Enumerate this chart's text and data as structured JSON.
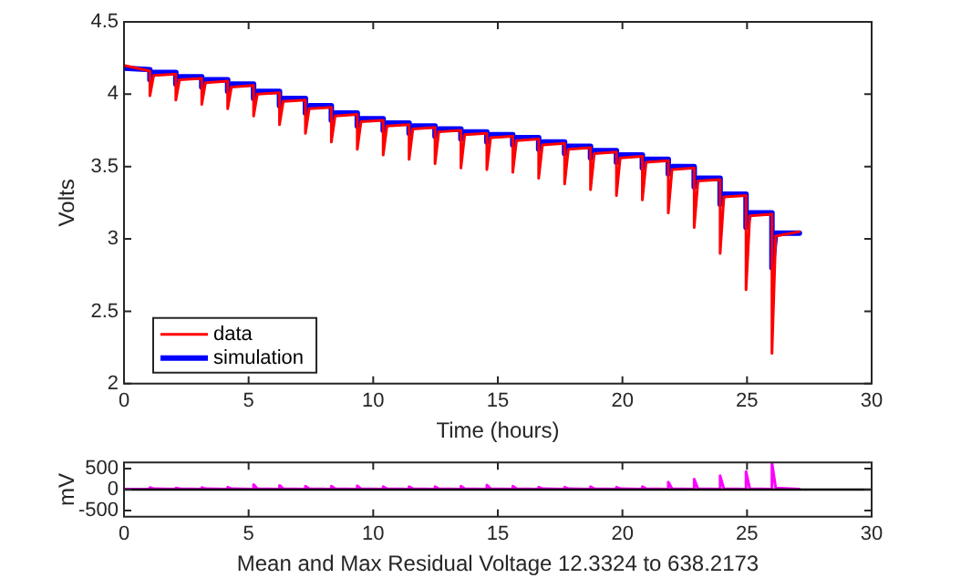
{
  "chart_data": [
    {
      "type": "line",
      "xlabel": "Time (hours)",
      "ylabel": "Volts",
      "xlim": [
        0,
        30
      ],
      "xticks": [
        0,
        5,
        10,
        15,
        20,
        25,
        30
      ],
      "ylim": [
        2,
        4.5
      ],
      "yticks": [
        2,
        2.5,
        3,
        3.5,
        4,
        4.5
      ],
      "legend": "bottom left",
      "grid": false,
      "x": [
        0,
        1.04,
        1.04,
        1.19,
        2.08,
        2.08,
        2.23,
        3.12,
        3.12,
        3.27,
        4.16,
        4.16,
        4.31,
        5.2,
        5.2,
        5.35,
        6.24,
        6.24,
        6.39,
        7.28,
        7.28,
        7.43,
        8.32,
        8.32,
        8.47,
        9.36,
        9.36,
        9.51,
        10.4,
        10.4,
        10.55,
        11.44,
        11.44,
        11.59,
        12.48,
        12.48,
        12.63,
        13.52,
        13.52,
        13.67,
        14.56,
        14.56,
        14.71,
        15.6,
        15.6,
        15.75,
        16.64,
        16.64,
        16.79,
        17.68,
        17.68,
        17.83,
        18.72,
        18.72,
        18.87,
        19.76,
        19.76,
        19.91,
        20.8,
        20.8,
        20.95,
        21.84,
        21.84,
        21.99,
        22.88,
        22.88,
        23.03,
        23.92,
        23.92,
        24.07,
        24.96,
        24.96,
        25.11,
        26,
        26,
        26.15,
        27.1
      ],
      "series": [
        {
          "name": "data",
          "color": "#ff0000",
          "values": [
            4.2,
            4.16,
            3.99,
            4.13,
            4.14,
            3.96,
            4.1,
            4.11,
            3.93,
            4.08,
            4.09,
            3.9,
            4.05,
            4.06,
            3.85,
            4.0,
            4.01,
            3.79,
            3.95,
            3.96,
            3.73,
            3.9,
            3.91,
            3.67,
            3.85,
            3.86,
            3.62,
            3.81,
            3.82,
            3.58,
            3.78,
            3.79,
            3.55,
            3.76,
            3.77,
            3.52,
            3.74,
            3.75,
            3.49,
            3.72,
            3.73,
            3.48,
            3.7,
            3.71,
            3.46,
            3.68,
            3.69,
            3.42,
            3.65,
            3.66,
            3.38,
            3.62,
            3.63,
            3.34,
            3.59,
            3.6,
            3.3,
            3.56,
            3.57,
            3.27,
            3.53,
            3.54,
            3.18,
            3.48,
            3.49,
            3.08,
            3.4,
            3.41,
            2.9,
            3.29,
            3.3,
            2.65,
            3.16,
            3.17,
            2.21,
            3.02,
            3.05
          ]
        },
        {
          "name": "simulation",
          "color": "#0000ff",
          "values": [
            4.18,
            4.17,
            4.1,
            4.15,
            4.15,
            4.07,
            4.12,
            4.12,
            4.05,
            4.1,
            4.1,
            4.02,
            4.07,
            4.07,
            3.97,
            4.02,
            4.02,
            3.92,
            3.97,
            3.97,
            3.87,
            3.92,
            3.92,
            3.82,
            3.87,
            3.87,
            3.78,
            3.83,
            3.83,
            3.75,
            3.8,
            3.8,
            3.73,
            3.78,
            3.78,
            3.71,
            3.76,
            3.76,
            3.69,
            3.74,
            3.74,
            3.67,
            3.72,
            3.72,
            3.65,
            3.7,
            3.7,
            3.62,
            3.67,
            3.67,
            3.59,
            3.64,
            3.64,
            3.56,
            3.61,
            3.61,
            3.53,
            3.58,
            3.58,
            3.49,
            3.55,
            3.55,
            3.45,
            3.5,
            3.5,
            3.36,
            3.42,
            3.42,
            3.24,
            3.31,
            3.31,
            3.08,
            3.18,
            3.18,
            2.8,
            3.04,
            3.04
          ]
        }
      ]
    },
    {
      "type": "line",
      "xlabel": "Mean and Max Residual Voltage 12.3324 to 638.2173",
      "ylabel": "mV",
      "xlim": [
        0,
        30
      ],
      "xticks": [
        0,
        5,
        10,
        15,
        20,
        25,
        30
      ],
      "ylim": [
        -650,
        650
      ],
      "yticks": [
        -500,
        0,
        500
      ],
      "grid": false,
      "ref_lines": [
        {
          "axis": "y",
          "value": 0,
          "color": "#000000"
        }
      ],
      "x": [
        0,
        1.04,
        1.04,
        1.19,
        2.08,
        2.08,
        2.23,
        3.12,
        3.12,
        3.27,
        4.16,
        4.16,
        4.31,
        5.2,
        5.2,
        5.35,
        6.24,
        6.24,
        6.39,
        7.28,
        7.28,
        7.43,
        8.32,
        8.32,
        8.47,
        9.36,
        9.36,
        9.51,
        10.4,
        10.4,
        10.55,
        11.44,
        11.44,
        11.59,
        12.48,
        12.48,
        12.63,
        13.52,
        13.52,
        13.67,
        14.56,
        14.56,
        14.71,
        15.6,
        15.6,
        15.75,
        16.64,
        16.64,
        16.79,
        17.68,
        17.68,
        17.83,
        18.72,
        18.72,
        18.87,
        19.76,
        19.76,
        19.91,
        20.8,
        20.8,
        20.95,
        21.84,
        21.84,
        21.99,
        22.88,
        22.88,
        23.03,
        23.92,
        23.92,
        24.07,
        24.96,
        24.96,
        25.11,
        26,
        26,
        26.15,
        27.1
      ],
      "series": [
        {
          "color": "#ff00ff",
          "values": [
            10,
            10,
            50,
            20,
            10,
            40,
            20,
            10,
            50,
            20,
            10,
            60,
            20,
            10,
            120,
            20,
            10,
            100,
            20,
            10,
            80,
            20,
            10,
            80,
            20,
            10,
            90,
            20,
            10,
            70,
            20,
            10,
            70,
            20,
            10,
            70,
            20,
            10,
            80,
            20,
            10,
            110,
            20,
            10,
            80,
            20,
            10,
            60,
            20,
            10,
            60,
            20,
            10,
            70,
            20,
            10,
            60,
            20,
            10,
            70,
            20,
            10,
            180,
            20,
            10,
            250,
            20,
            10,
            330,
            20,
            10,
            430,
            20,
            10,
            640,
            40,
            10
          ]
        }
      ]
    }
  ]
}
